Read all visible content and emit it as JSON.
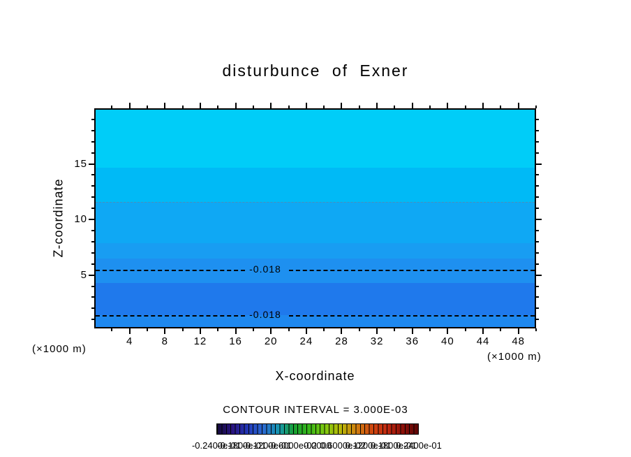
{
  "labels": {
    "title": "disturbunce of Exner",
    "y_axis": "Z-coordinate",
    "x_axis": "X-coordinate",
    "unit_left": "(×1000 m)",
    "unit_right": "(×1000 m)",
    "contour_interval_text": "CONTOUR INTERVAL = 3.000E-03"
  },
  "chart_data": {
    "type": "heatmap",
    "subtype": "filled-contour",
    "title": "disturbunce of Exner",
    "xlabel": "X-coordinate",
    "ylabel": "Z-coordinate",
    "x_units": "×1000 m",
    "y_units": "×1000 m",
    "x_range": [
      0,
      50
    ],
    "z_range": [
      0.2,
      20
    ],
    "x_major_ticks": [
      4,
      8,
      12,
      16,
      20,
      24,
      28,
      32,
      36,
      40,
      44,
      48
    ],
    "x_minor_ticks": [
      2,
      6,
      10,
      14,
      18,
      22,
      26,
      30,
      34,
      38,
      42,
      46,
      50
    ],
    "y_major_ticks": [
      5,
      10,
      15
    ],
    "y_minor_ticks": [
      1,
      2,
      3,
      4,
      6,
      7,
      8,
      9,
      11,
      12,
      13,
      14,
      16,
      17,
      18,
      19
    ],
    "contour_interval": 0.003,
    "fill_bands": [
      {
        "z_from": 14.8,
        "z_to": 20.0,
        "color": "#00cdf8"
      },
      {
        "z_from": 11.7,
        "z_to": 14.8,
        "color": "#00baf6"
      },
      {
        "z_from": 8.0,
        "z_to": 11.7,
        "color": "#0fa8f4"
      },
      {
        "z_from": 6.6,
        "z_to": 8.0,
        "color": "#189df2"
      },
      {
        "z_from": 4.4,
        "z_to": 6.6,
        "color": "#1e90f0"
      },
      {
        "z_from": 1.5,
        "z_to": 4.4,
        "color": "#1f79ec"
      },
      {
        "z_from": 0.2,
        "z_to": 1.5,
        "color": "#1e88ef"
      }
    ],
    "contour_lines": [
      {
        "z": 5.6,
        "label": "-0.018",
        "style": "dashed-black"
      },
      {
        "z": 1.5,
        "label": "-0.018",
        "style": "dashed-black"
      },
      {
        "z": 11.7,
        "label": "",
        "style": "dashed-light"
      }
    ],
    "colorbar": {
      "colors": [
        "#140a3a",
        "#2a1480",
        "#2238b8",
        "#2a6ad0",
        "#1898b0",
        "#18a030",
        "#3ab818",
        "#80c810",
        "#b8b808",
        "#d08010",
        "#d04810",
        "#c02810",
        "#8c1008",
        "#5c0606"
      ],
      "labels": [
        "-0.2400e-01",
        "-0.1800e-01",
        "-0.1200e-01",
        "-0.6000e-02",
        "0.0000",
        "0.6000e-02",
        "0.1200e-01",
        "0.1800e-01",
        "0.2400e-01"
      ]
    }
  }
}
